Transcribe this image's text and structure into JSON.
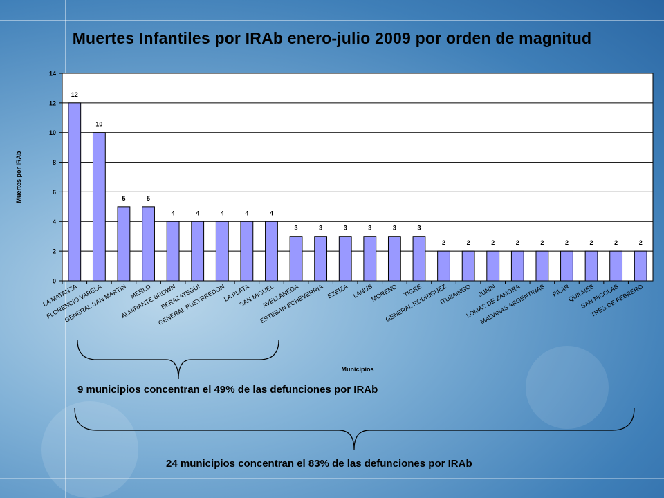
{
  "slide": {
    "title": "Muertes Infantiles por IRAb enero-julio 2009 por orden de magnitud",
    "annotation_1": "9 municipios concentran el 49% de las defunciones por IRAb",
    "annotation_2": "24 municipios concentran el 83% de las defunciones por IRAb"
  },
  "colors": {
    "bar_fill": "#9999ff",
    "bar_stroke": "#000000",
    "plot_bg": "#ffffff"
  },
  "chart_data": {
    "type": "bar",
    "xlabel": "Municipios",
    "ylabel": "Muertes por IRAb",
    "ylim": [
      0,
      14
    ],
    "yticks": [
      0,
      2,
      4,
      6,
      8,
      10,
      12,
      14
    ],
    "grid": true,
    "data_labels": true,
    "categories": [
      "LA MATANZA",
      "FLORENCIO VARELA",
      "GENERAL SAN MARTIN",
      "MERLO",
      "ALMIRANTE BROWN",
      "BERAZATEGUI",
      "GENERAL PUEYRREDON",
      "LA PLATA",
      "SAN MIGUEL",
      "AVELLANEDA",
      "ESTEBAN ECHEVERRIA",
      "EZEIZA",
      "LANUS",
      "MORENO",
      "TIGRE",
      "GENERAL RODRIGUEZ",
      "ITUZAINGO",
      "JUNIN",
      "LOMAS DE ZAMORA",
      "MALVINAS ARGENTINAS",
      "PILAR",
      "QUILMES",
      "SAN NICOLAS",
      "TRES DE FEBRERO"
    ],
    "values": [
      12,
      10,
      5,
      5,
      4,
      4,
      4,
      4,
      4,
      3,
      3,
      3,
      3,
      3,
      3,
      2,
      2,
      2,
      2,
      2,
      2,
      2,
      2,
      2
    ]
  }
}
